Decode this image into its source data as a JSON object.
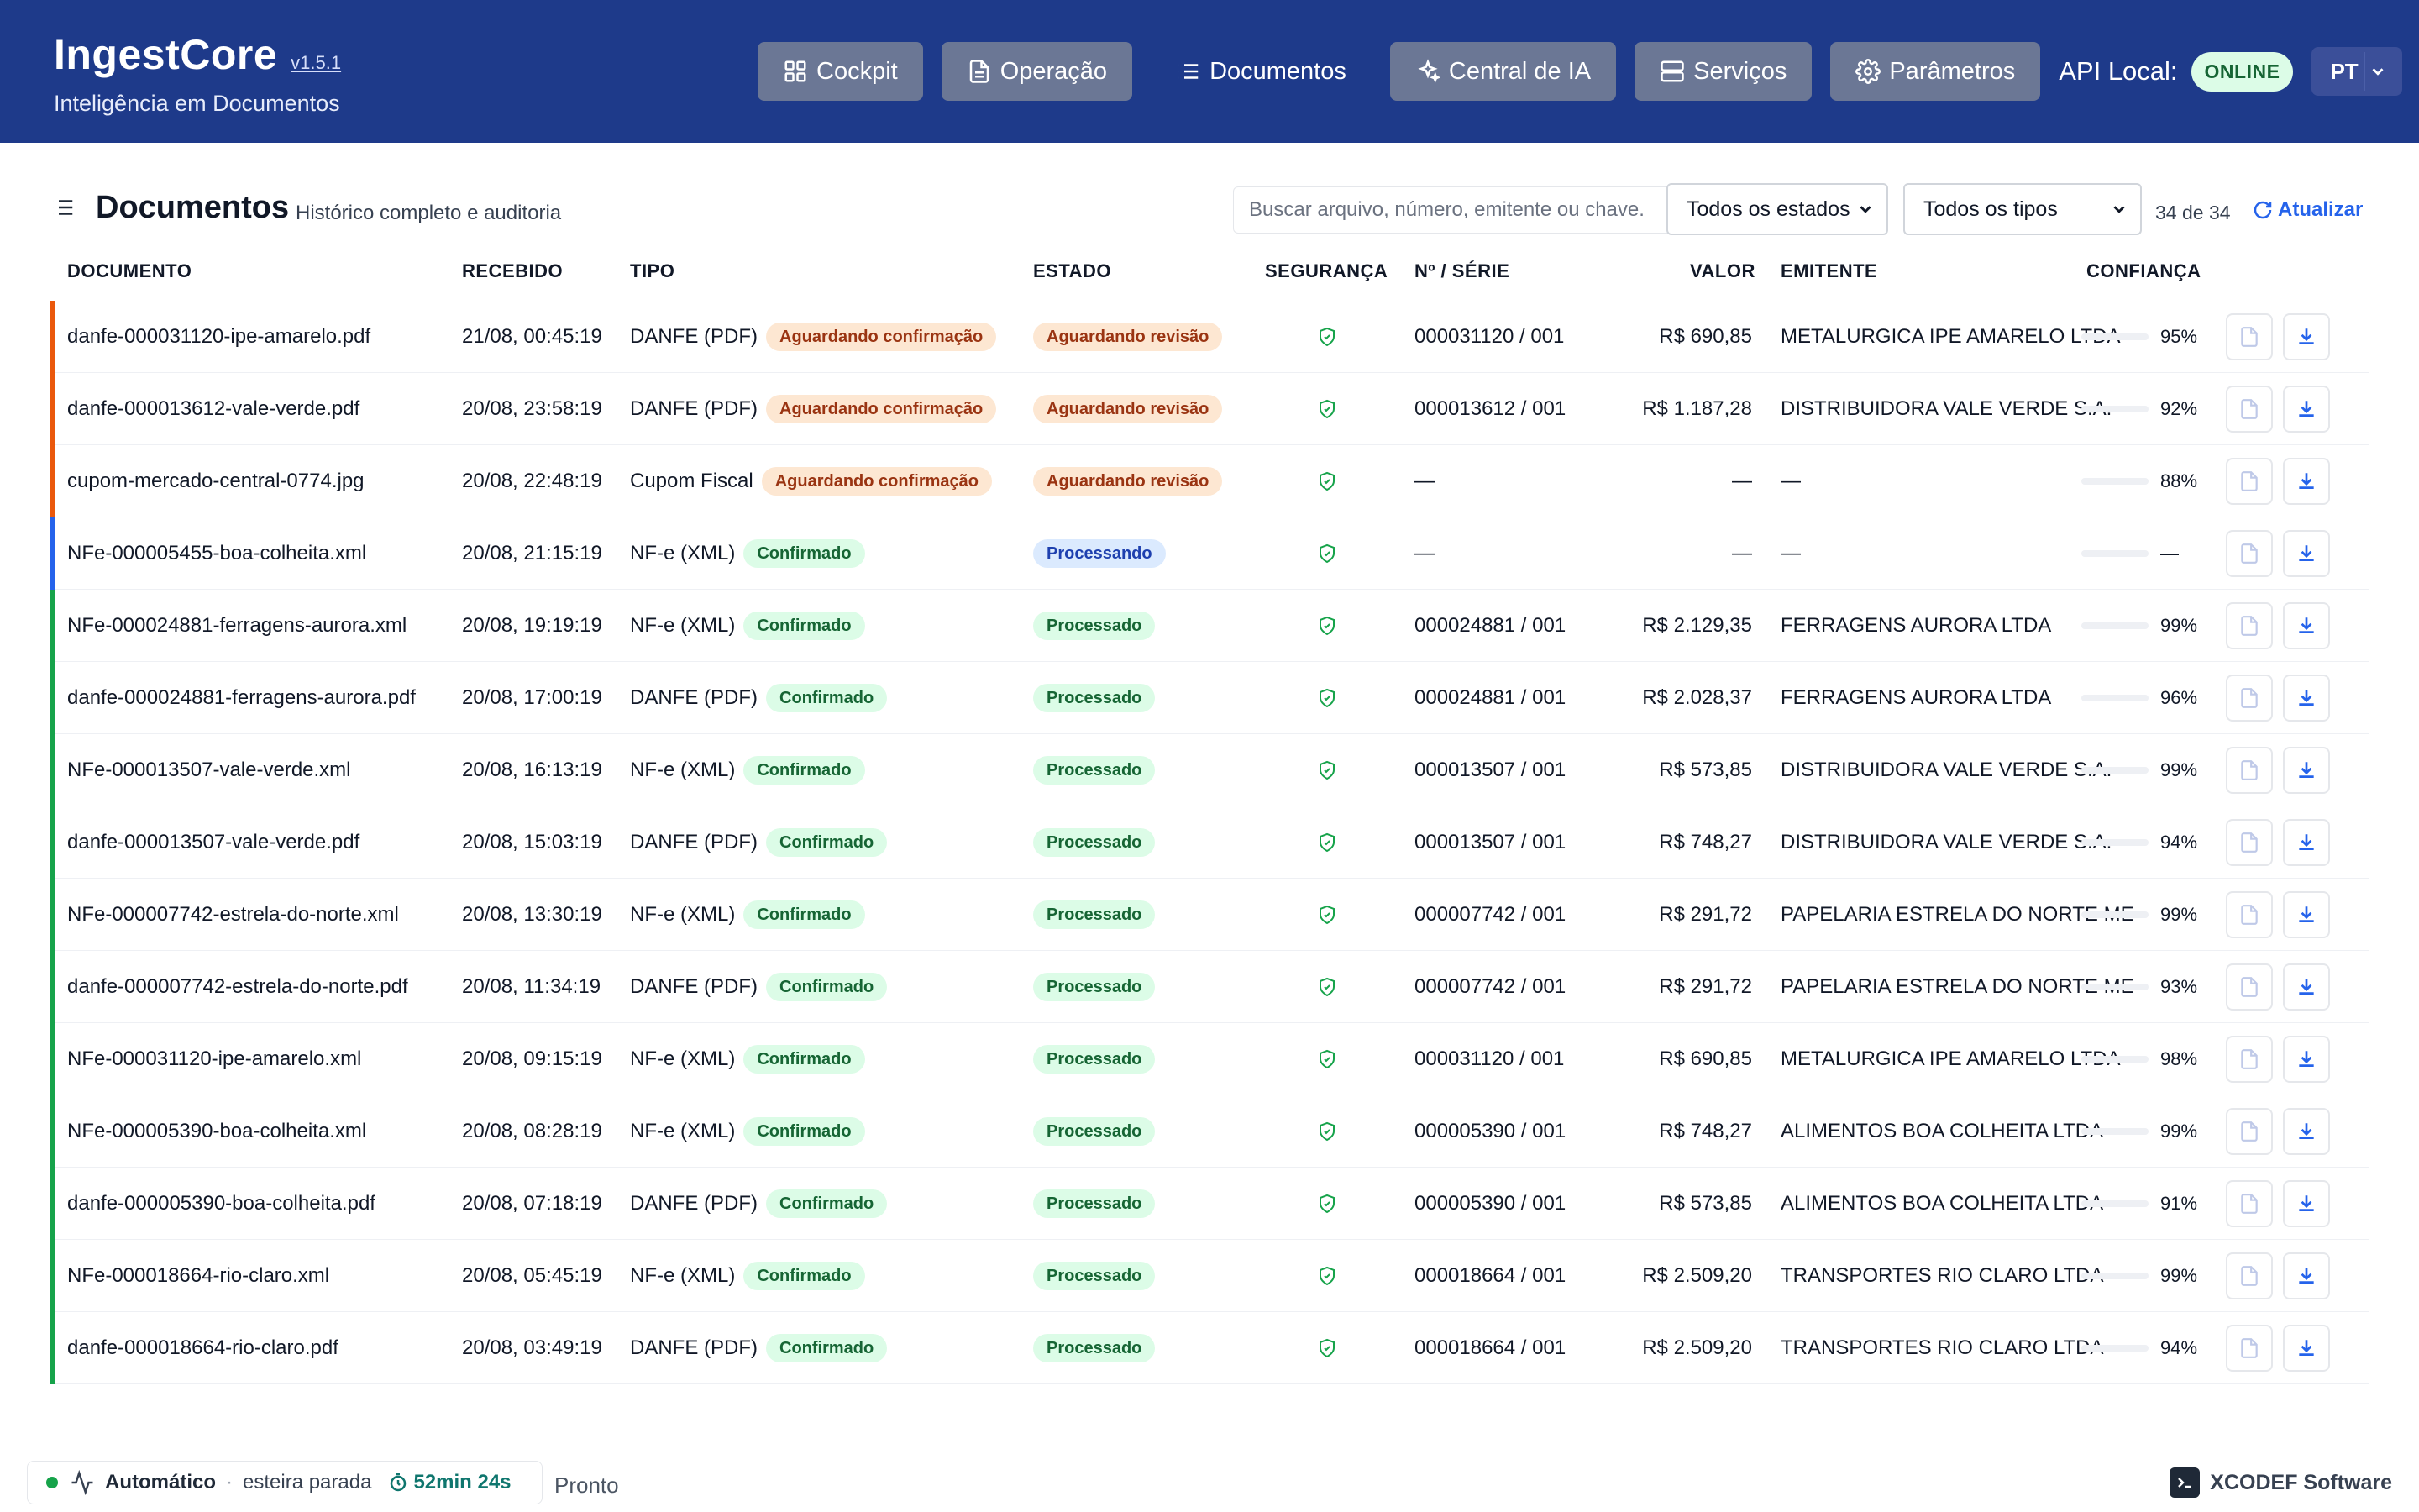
{
  "app": {
    "name": "IngestCore",
    "version": "v1.5.1",
    "subtitle": "Inteligência em Documentos"
  },
  "nav": {
    "items": [
      {
        "label": "Cockpit",
        "icon": "grid-icon"
      },
      {
        "label": "Operação",
        "icon": "file-icon"
      },
      {
        "label": "Documentos",
        "icon": "list-icon",
        "active": true
      },
      {
        "label": "Central de IA",
        "icon": "sparkles-icon"
      },
      {
        "label": "Serviços",
        "icon": "server-icon"
      },
      {
        "label": "Parâmetros",
        "icon": "gear-icon"
      }
    ],
    "api_label": "API Local:",
    "api_status": "ONLINE",
    "language": "PT"
  },
  "page": {
    "title": "Documentos",
    "subtitle": "Histórico completo e auditoria",
    "search_placeholder": "Buscar arquivo, número, emitente ou chave.",
    "state_filter": "Todos os estados",
    "type_filter": "Todos os tipos",
    "count": "34 de 34",
    "refresh_label": "Atualizar"
  },
  "table": {
    "headers": {
      "doc": "DOCUMENTO",
      "date": "RECEBIDO",
      "type": "TIPO",
      "state": "ESTADO",
      "sec": "SEGURANÇA",
      "num": "Nº / SÉRIE",
      "val": "VALOR",
      "emit": "EMITENTE",
      "conf": "CONFIANÇA"
    },
    "rows": [
      {
        "doc": "danfe-000031120-ipe-amarelo.pdf",
        "date": "21/08, 00:45:19",
        "type": "DANFE (PDF)",
        "conf_status": "Aguardando confirmação",
        "state": "Aguardando revisão",
        "num": "000031120 / 001",
        "val": "R$ 690,85",
        "emit": "METALURGICA IPE AMARELO LTDA",
        "conf": "95%"
      },
      {
        "doc": "danfe-000013612-vale-verde.pdf",
        "date": "20/08, 23:58:19",
        "type": "DANFE (PDF)",
        "conf_status": "Aguardando confirmação",
        "state": "Aguardando revisão",
        "num": "000013612 / 001",
        "val": "R$ 1.187,28",
        "emit": "DISTRIBUIDORA VALE VERDE S.A.",
        "conf": "92%"
      },
      {
        "doc": "cupom-mercado-central-0774.jpg",
        "date": "20/08, 22:48:19",
        "type": "Cupom Fiscal",
        "conf_status": "Aguardando confirmação",
        "state": "Aguardando revisão",
        "num": "—",
        "val": "—",
        "emit": "—",
        "conf": "88%"
      },
      {
        "doc": "NFe-000005455-boa-colheita.xml",
        "date": "20/08, 21:15:19",
        "type": "NF-e (XML)",
        "conf_status": "Confirmado",
        "state": "Processando",
        "num": "—",
        "val": "—",
        "emit": "—",
        "conf": "—"
      },
      {
        "doc": "NFe-000024881-ferragens-aurora.xml",
        "date": "20/08, 19:19:19",
        "type": "NF-e (XML)",
        "conf_status": "Confirmado",
        "state": "Processado",
        "num": "000024881 / 001",
        "val": "R$ 2.129,35",
        "emit": "FERRAGENS AURORA LTDA",
        "conf": "99%"
      },
      {
        "doc": "danfe-000024881-ferragens-aurora.pdf",
        "date": "20/08, 17:00:19",
        "type": "DANFE (PDF)",
        "conf_status": "Confirmado",
        "state": "Processado",
        "num": "000024881 / 001",
        "val": "R$ 2.028,37",
        "emit": "FERRAGENS AURORA LTDA",
        "conf": "96%"
      },
      {
        "doc": "NFe-000013507-vale-verde.xml",
        "date": "20/08, 16:13:19",
        "type": "NF-e (XML)",
        "conf_status": "Confirmado",
        "state": "Processado",
        "num": "000013507 / 001",
        "val": "R$ 573,85",
        "emit": "DISTRIBUIDORA VALE VERDE S.A.",
        "conf": "99%"
      },
      {
        "doc": "danfe-000013507-vale-verde.pdf",
        "date": "20/08, 15:03:19",
        "type": "DANFE (PDF)",
        "conf_status": "Confirmado",
        "state": "Processado",
        "num": "000013507 / 001",
        "val": "R$ 748,27",
        "emit": "DISTRIBUIDORA VALE VERDE S.A.",
        "conf": "94%"
      },
      {
        "doc": "NFe-000007742-estrela-do-norte.xml",
        "date": "20/08, 13:30:19",
        "type": "NF-e (XML)",
        "conf_status": "Confirmado",
        "state": "Processado",
        "num": "000007742 / 001",
        "val": "R$ 291,72",
        "emit": "PAPELARIA ESTRELA DO NORTE ME",
        "conf": "99%"
      },
      {
        "doc": "danfe-000007742-estrela-do-norte.pdf",
        "date": "20/08, 11:34:19",
        "type": "DANFE (PDF)",
        "conf_status": "Confirmado",
        "state": "Processado",
        "num": "000007742 / 001",
        "val": "R$ 291,72",
        "emit": "PAPELARIA ESTRELA DO NORTE ME",
        "conf": "93%"
      },
      {
        "doc": "NFe-000031120-ipe-amarelo.xml",
        "date": "20/08, 09:15:19",
        "type": "NF-e (XML)",
        "conf_status": "Confirmado",
        "state": "Processado",
        "num": "000031120 / 001",
        "val": "R$ 690,85",
        "emit": "METALURGICA IPE AMARELO LTDA",
        "conf": "98%"
      },
      {
        "doc": "NFe-000005390-boa-colheita.xml",
        "date": "20/08, 08:28:19",
        "type": "NF-e (XML)",
        "conf_status": "Confirmado",
        "state": "Processado",
        "num": "000005390 / 001",
        "val": "R$ 748,27",
        "emit": "ALIMENTOS BOA COLHEITA LTDA",
        "conf": "99%"
      },
      {
        "doc": "danfe-000005390-boa-colheita.pdf",
        "date": "20/08, 07:18:19",
        "type": "DANFE (PDF)",
        "conf_status": "Confirmado",
        "state": "Processado",
        "num": "000005390 / 001",
        "val": "R$ 573,85",
        "emit": "ALIMENTOS BOA COLHEITA LTDA",
        "conf": "91%"
      },
      {
        "doc": "NFe-000018664-rio-claro.xml",
        "date": "20/08, 05:45:19",
        "type": "NF-e (XML)",
        "conf_status": "Confirmado",
        "state": "Processado",
        "num": "000018664 / 001",
        "val": "R$ 2.509,20",
        "emit": "TRANSPORTES RIO CLARO LTDA",
        "conf": "99%"
      },
      {
        "doc": "danfe-000018664-rio-claro.pdf",
        "date": "20/08, 03:49:19",
        "type": "DANFE (PDF)",
        "conf_status": "Confirmado",
        "state": "Processado",
        "num": "000018664 / 001",
        "val": "R$ 2.509,20",
        "emit": "TRANSPORTES RIO CLARO LTDA",
        "conf": "94%"
      }
    ]
  },
  "footer": {
    "mode": "Automático",
    "belt_status": "esteira parada",
    "timer": "52min 24s",
    "status": "Pronto",
    "vendor": "XCODEF Software"
  },
  "colors": {
    "header_bg": "#1e3a8a",
    "bar_wait": "#ea580c",
    "bar_processing": "#2563eb",
    "bar_done": "#16a34a",
    "accent": "#2563eb"
  }
}
